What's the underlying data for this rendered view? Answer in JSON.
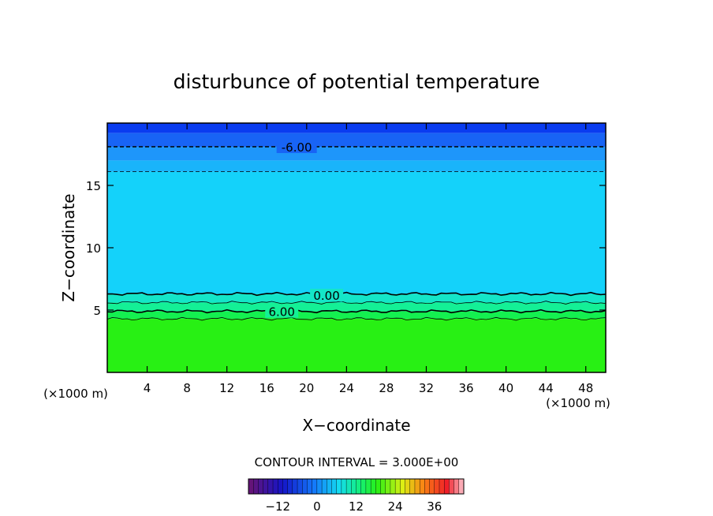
{
  "chart_data": {
    "type": "heatmap",
    "title": "disturbunce of potential temperature",
    "xlabel": "X−coordinate",
    "ylabel": "Z−coordinate",
    "x_unit": "(×1000 m)",
    "y_unit": "(×1000 m)",
    "xlim": [
      0,
      50
    ],
    "ylim": [
      0,
      20
    ],
    "x_ticks": [
      4,
      8,
      12,
      16,
      20,
      24,
      28,
      32,
      36,
      40,
      44,
      48
    ],
    "y_ticks": [
      5,
      10,
      15
    ],
    "contour_interval_text": "CONTOUR INTERVAL = 3.000E+00",
    "contour_labels": [
      {
        "text": "-6.00",
        "x": 19,
        "z": 18.1
      },
      {
        "text": "0.00",
        "x": 22,
        "z": 6.2
      },
      {
        "text": "6.00",
        "x": 17.5,
        "z": 4.9
      }
    ],
    "contour_levels": [
      {
        "value": -6,
        "z": 18.1,
        "style": "dashed"
      },
      {
        "value": -3,
        "z": 16.1,
        "style": "dashed"
      },
      {
        "value": 0,
        "z": 6.3,
        "style": "solid"
      },
      {
        "value": 3,
        "z": 5.6,
        "style": "solid"
      },
      {
        "value": 6,
        "z": 4.9,
        "style": "solid"
      },
      {
        "value": 9,
        "z": 4.3,
        "style": "solid"
      }
    ],
    "colorbar": {
      "ticks": [
        -12,
        0,
        12,
        24,
        36
      ],
      "tick_labels": [
        "−12",
        "0",
        "12",
        "24",
        "36"
      ],
      "range": [
        -21,
        45
      ]
    },
    "color_bands": [
      {
        "z0": 19.2,
        "z1": 20.0,
        "color": "#0a3cf0"
      },
      {
        "z0": 18.1,
        "z1": 19.2,
        "color": "#1864f5"
      },
      {
        "z0": 17.0,
        "z1": 18.1,
        "color": "#1e96fa"
      },
      {
        "z0": 16.1,
        "z1": 17.0,
        "color": "#19b4fa"
      },
      {
        "z0": 6.3,
        "z1": 16.1,
        "color": "#14d2fa"
      },
      {
        "z0": 5.6,
        "z1": 6.3,
        "color": "#14e6c8"
      },
      {
        "z0": 4.9,
        "z1": 5.6,
        "color": "#14f096"
      },
      {
        "z0": 4.3,
        "z1": 4.9,
        "color": "#14f050"
      },
      {
        "z0": 0.0,
        "z1": 4.3,
        "color": "#28f014"
      }
    ]
  }
}
